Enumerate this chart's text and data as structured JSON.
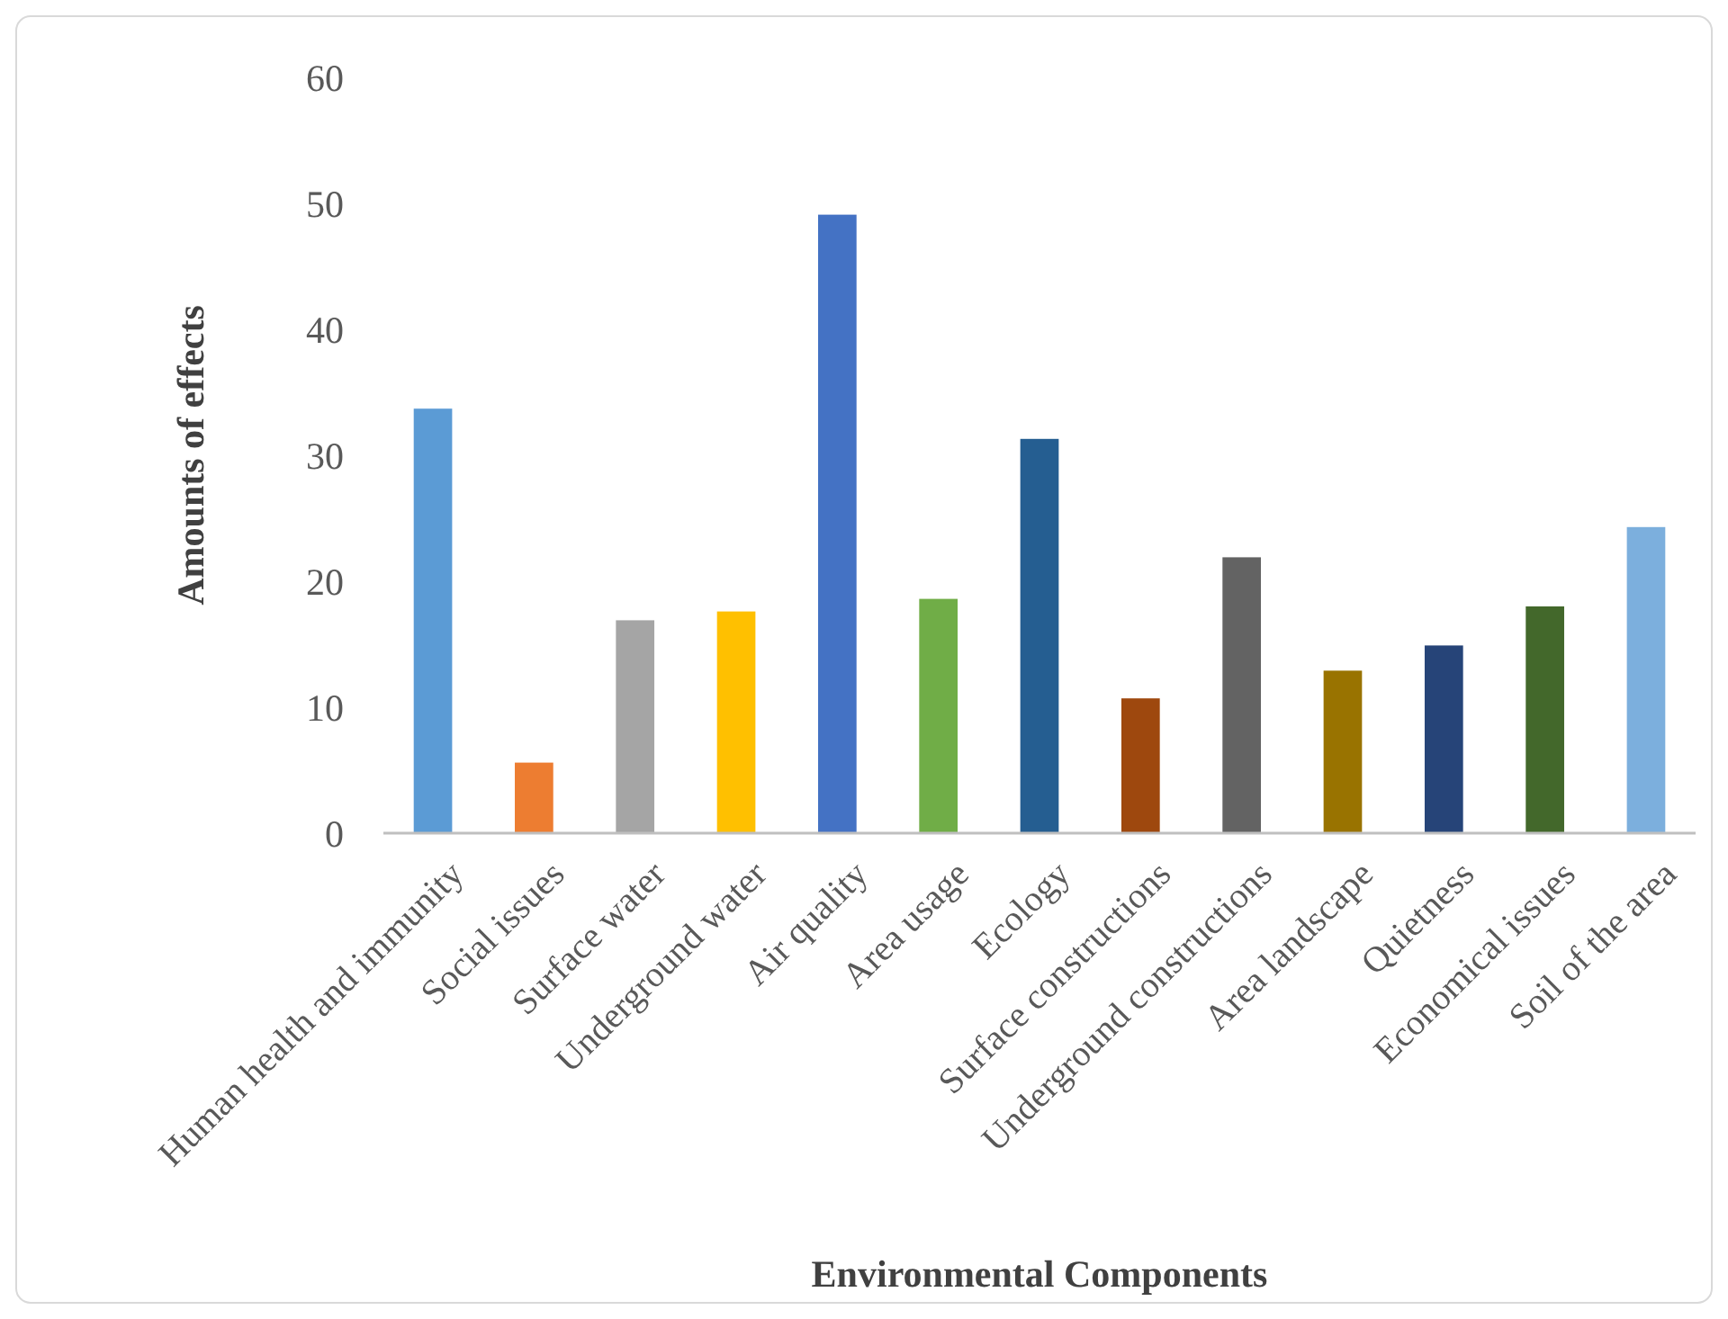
{
  "chart_data": {
    "type": "bar",
    "xlabel": "Environmental Components",
    "ylabel": "Amounts of effects",
    "categories": [
      "Human health and immunity",
      "Social issues",
      "Surface water",
      "Underground water",
      "Air quality",
      "Area usage",
      "Ecology",
      "Surface constructions",
      "Underground constructions",
      "Area landscape",
      "Quietness",
      "Economical issues",
      "Soil of the area"
    ],
    "values": [
      33.7,
      5.6,
      16.9,
      17.6,
      49.1,
      18.6,
      31.3,
      10.7,
      21.9,
      12.9,
      14.9,
      18,
      24.3
    ],
    "colors": [
      "#5b9bd5",
      "#ed7d31",
      "#a5a5a5",
      "#ffc000",
      "#4472c4",
      "#70ad47",
      "#255e91",
      "#9e480e",
      "#636363",
      "#997300",
      "#264478",
      "#43682b",
      "#7cafdd"
    ],
    "ylim": [
      0,
      60
    ],
    "yticks": [
      0,
      10,
      20,
      30,
      40,
      50,
      60
    ],
    "grid": false
  }
}
